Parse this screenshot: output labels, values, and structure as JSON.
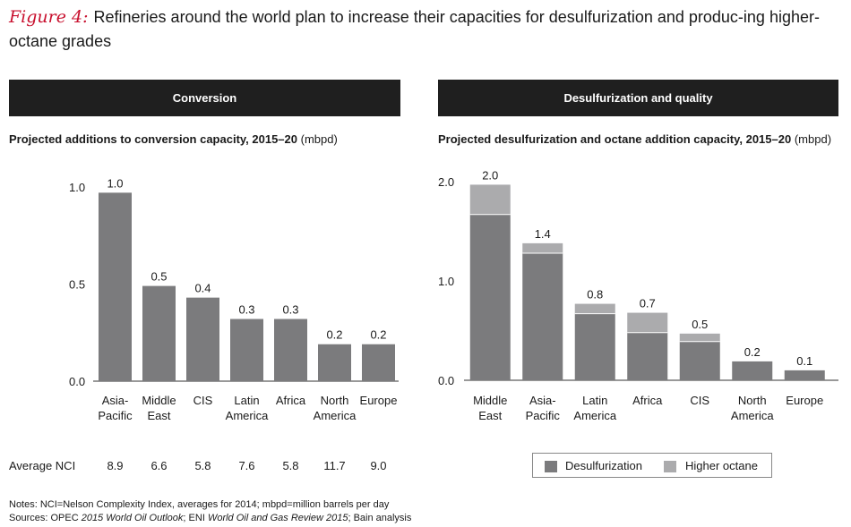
{
  "figure": {
    "label": "Figure 4:",
    "title": "Refineries around the world plan to increase their capacities for desulfurization and produc-ing higher-octane grades"
  },
  "colors": {
    "dark": "#7b7b7d",
    "light": "#ababad",
    "header_bg": "#1f1f1f",
    "accent": "#c8102e"
  },
  "left_panel": {
    "header": "Conversion",
    "subtitle_bold": "Projected additions to conversion capacity, 2015–20",
    "subtitle_unit": "(mbpd)"
  },
  "right_panel": {
    "header": "Desulfurization and quality",
    "subtitle_bold": "Projected desulfurization and octane addition capacity, 2015–20",
    "subtitle_unit": "(mbpd)"
  },
  "chart_data": [
    {
      "type": "bar",
      "title": "Projected additions to conversion capacity, 2015–20 (mbpd)",
      "categories": [
        [
          "Asia-",
          "Pacific"
        ],
        [
          "Middle",
          "East"
        ],
        [
          "CIS"
        ],
        [
          "Latin",
          "America"
        ],
        [
          "Africa"
        ],
        [
          "North",
          "America"
        ],
        [
          "Europe"
        ]
      ],
      "values": [
        0.97,
        0.49,
        0.43,
        0.32,
        0.32,
        0.19,
        0.19
      ],
      "data_labels": [
        "1.0",
        "0.5",
        "0.4",
        "0.3",
        "0.3",
        "0.2",
        "0.2"
      ],
      "yticks": [
        0,
        0.5,
        1.0
      ],
      "ytick_labels": [
        "0.0",
        "0.5",
        "1.0"
      ],
      "ylim": [
        0,
        1.05
      ],
      "row_label": "Average NCI",
      "row_values": [
        "8.9",
        "6.6",
        "5.8",
        "7.6",
        "5.8",
        "11.7",
        "9.0"
      ]
    },
    {
      "type": "bar",
      "stacked": true,
      "title": "Projected desulfurization and octane addition capacity, 2015–20 (mbpd)",
      "categories": [
        [
          "Middle",
          "East"
        ],
        [
          "Asia-",
          "Pacific"
        ],
        [
          "Latin",
          "America"
        ],
        [
          "Africa"
        ],
        [
          "CIS"
        ],
        [
          "North",
          "America"
        ],
        [
          "Europe"
        ]
      ],
      "series": [
        {
          "name": "Desulfurization",
          "values": [
            1.67,
            1.28,
            0.67,
            0.48,
            0.39,
            0.19,
            0.1
          ]
        },
        {
          "name": "Higher octane",
          "values": [
            0.3,
            0.1,
            0.1,
            0.2,
            0.08,
            0.0,
            0.0
          ]
        }
      ],
      "data_labels": [
        "2.0",
        "1.4",
        "0.8",
        "0.7",
        "0.5",
        "0.2",
        "0.1"
      ],
      "yticks": [
        0,
        1.0,
        2.0
      ],
      "ytick_labels": [
        "0.0",
        "1.0",
        "2.0"
      ],
      "ylim": [
        0,
        2.1
      ],
      "legend": [
        "Desulfurization",
        "Higher octane"
      ]
    }
  ],
  "notes": {
    "line1": "Notes: NCI=Nelson Complexity Index, averages for 2014; mbpd=million barrels per day",
    "line2_parts": [
      "Sources: OPEC ",
      "2015 World Oil Outlook",
      "; ENI ",
      "World Oil and Gas Review 2015",
      "; Bain analysis"
    ]
  }
}
